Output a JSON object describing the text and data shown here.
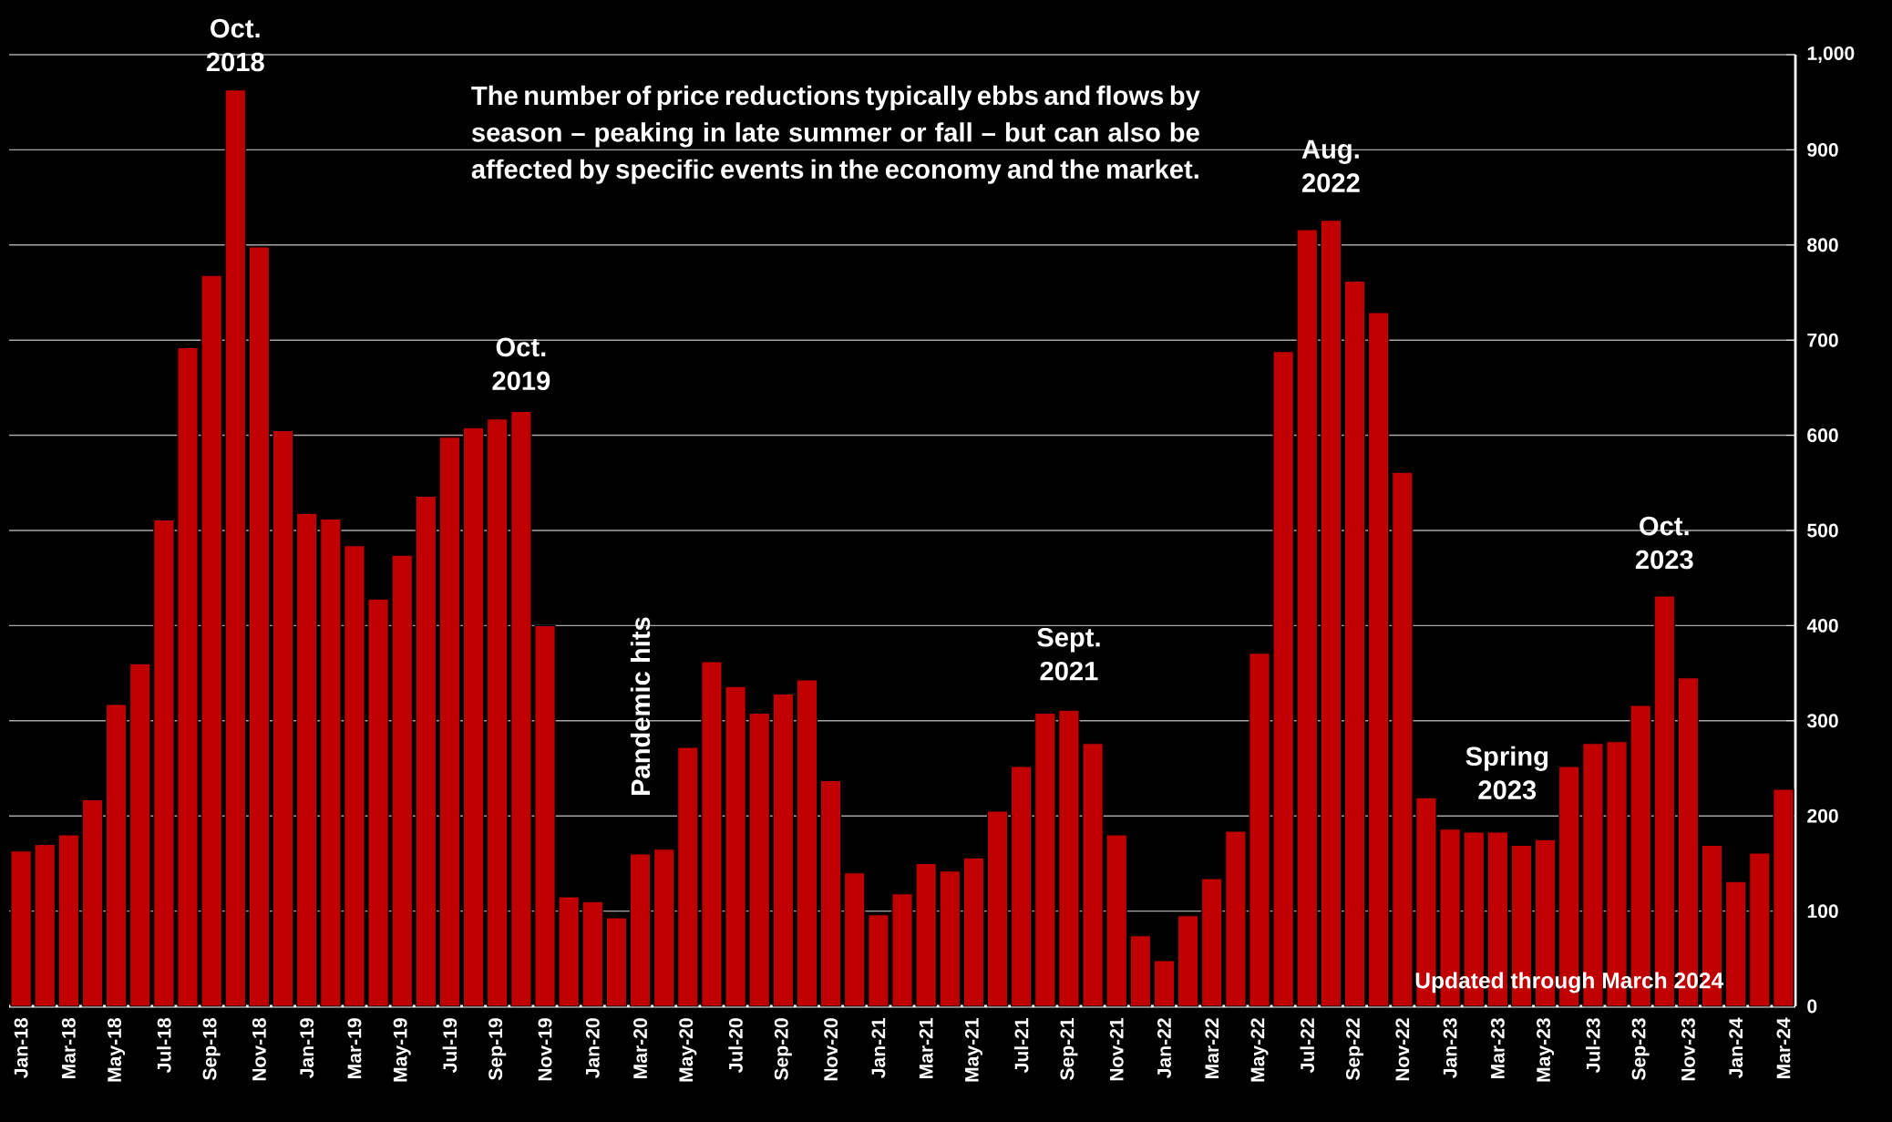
{
  "chart_data": {
    "type": "bar",
    "categories": [
      "Jan-18",
      null,
      "Mar-18",
      null,
      "May-18",
      null,
      "Jul-18",
      null,
      "Sep-18",
      null,
      "Nov-18",
      null,
      "Jan-19",
      null,
      "Mar-19",
      null,
      "May-19",
      null,
      "Jul-19",
      null,
      "Sep-19",
      null,
      "Nov-19",
      null,
      "Jan-20",
      null,
      "Mar-20",
      null,
      "May-20",
      null,
      "Jul-20",
      null,
      "Sep-20",
      null,
      "Nov-20",
      null,
      "Jan-21",
      null,
      "Mar-21",
      null,
      "May-21",
      null,
      "Jul-21",
      null,
      "Sep-21",
      null,
      "Nov-21",
      null,
      "Jan-22",
      null,
      "Mar-22",
      null,
      "May-22",
      null,
      "Jul-22",
      null,
      "Sep-22",
      null,
      "Nov-22",
      null,
      "Jan-23",
      null,
      "Mar-23",
      null,
      "May-23",
      null,
      "Jul-23",
      null,
      "Sep-23",
      null,
      "Nov-23",
      null,
      "Jan-24",
      null,
      "Mar-24"
    ],
    "values": [
      163,
      170,
      180,
      217,
      317,
      360,
      511,
      692,
      768,
      963,
      798,
      605,
      518,
      512,
      484,
      428,
      474,
      536,
      598,
      608,
      617,
      625,
      400,
      115,
      110,
      93,
      160,
      165,
      272,
      362,
      336,
      308,
      328,
      343,
      237,
      140,
      96,
      118,
      150,
      142,
      156,
      205,
      252,
      308,
      311,
      276,
      180,
      74,
      48,
      95,
      134,
      184,
      371,
      688,
      816,
      826,
      762,
      729,
      561,
      219,
      186,
      183,
      183,
      169,
      175,
      252,
      276,
      278,
      316,
      431,
      345,
      169,
      131,
      161,
      228
    ],
    "color": "#c00000",
    "ylim": [
      0,
      1000
    ],
    "yticks": [
      0,
      100,
      200,
      300,
      400,
      500,
      600,
      700,
      800,
      900,
      {
        "value": 1000,
        "label": "1,000"
      }
    ],
    "grid": "y",
    "annotations": [
      "Oct. 2018",
      "The number of price reductions typically ebbs and flows by season – peaking in late summer or fall – but can also be affected by specific events in the economy and the market.",
      "Oct. 2019",
      "Pandemic hits",
      "Sept. 2021",
      "Aug. 2022",
      "Spring 2023",
      "Oct. 2023",
      "Updated through March 2024"
    ]
  }
}
